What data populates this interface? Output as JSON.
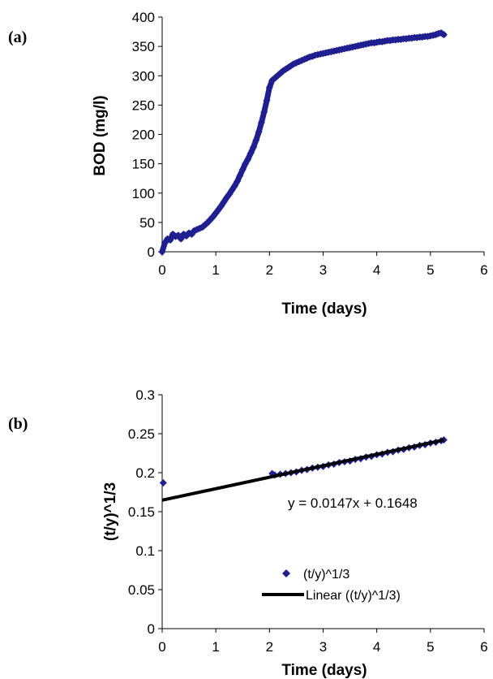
{
  "chart_data": [
    {
      "type": "scatter",
      "panel_label": "(a)",
      "title": "",
      "xlabel": "Time (days)",
      "ylabel": "BOD (mg/l)",
      "xlim": [
        0,
        6
      ],
      "ylim": [
        0,
        400
      ],
      "xticks": [
        "0",
        "1",
        "2",
        "3",
        "4",
        "5",
        "6"
      ],
      "yticks": [
        "0",
        "50",
        "100",
        "150",
        "200",
        "250",
        "300",
        "350",
        "400"
      ],
      "grid": false,
      "marker_color": "#1f1f8f",
      "series": [
        {
          "x": [
            0,
            0.05,
            0.1,
            0.15,
            0.2,
            0.25,
            0.3,
            0.35,
            0.4,
            0.45,
            0.5,
            0.55,
            0.6,
            0.65,
            0.7,
            0.75,
            0.8,
            0.85,
            0.9,
            0.95,
            1.0,
            1.05,
            1.1,
            1.15,
            1.2,
            1.25,
            1.3,
            1.35,
            1.4,
            1.45,
            1.5,
            1.55,
            1.6,
            1.65,
            1.7,
            1.75,
            1.8,
            1.85,
            1.9,
            1.95,
            2.0,
            2.05,
            2.1,
            2.15,
            2.2,
            2.25,
            2.3,
            2.35,
            2.4,
            2.45,
            2.5,
            2.55,
            2.6,
            2.65,
            2.7,
            2.75,
            2.8,
            2.85,
            2.9,
            2.95,
            3.0,
            3.05,
            3.1,
            3.15,
            3.2,
            3.25,
            3.3,
            3.35,
            3.4,
            3.45,
            3.5,
            3.55,
            3.6,
            3.65,
            3.7,
            3.75,
            3.8,
            3.85,
            3.9,
            3.95,
            4.0,
            4.05,
            4.1,
            4.15,
            4.2,
            4.25,
            4.3,
            4.35,
            4.4,
            4.45,
            4.5,
            4.55,
            4.6,
            4.65,
            4.7,
            4.75,
            4.8,
            4.85,
            4.9,
            4.95,
            5.0,
            5.05,
            5.1,
            5.15,
            5.2,
            5.25
          ],
          "y": [
            0,
            15,
            22,
            20,
            30,
            26,
            28,
            22,
            30,
            27,
            32,
            30,
            36,
            38,
            40,
            42,
            46,
            50,
            55,
            60,
            66,
            72,
            78,
            85,
            92,
            98,
            105,
            112,
            120,
            130,
            140,
            150,
            158,
            168,
            178,
            190,
            204,
            220,
            238,
            258,
            280,
            292,
            296,
            300,
            304,
            308,
            311,
            314,
            317,
            320,
            322,
            324,
            326,
            328,
            330,
            332,
            333,
            335,
            336,
            337,
            338,
            339,
            340,
            341,
            342,
            343,
            344,
            345,
            346,
            347,
            348,
            349,
            350,
            351,
            352,
            353,
            354,
            355,
            356,
            356,
            357,
            358,
            358,
            359,
            360,
            360,
            361,
            361,
            362,
            362,
            363,
            363,
            364,
            364,
            365,
            365,
            366,
            366,
            367,
            367,
            368,
            369,
            370,
            372,
            373,
            370
          ]
        }
      ]
    },
    {
      "type": "scatter",
      "panel_label": "(b)",
      "title": "",
      "xlabel": "Time (days)",
      "ylabel": "(t/y)^1/3",
      "xlim": [
        0,
        6
      ],
      "ylim": [
        0,
        0.3
      ],
      "xticks": [
        "0",
        "1",
        "2",
        "3",
        "4",
        "5",
        "6"
      ],
      "yticks": [
        "0",
        "0.05",
        "0.1",
        "0.15",
        "0.2",
        "0.25",
        "0.3"
      ],
      "grid": false,
      "annotation": "y = 0.0147x + 0.1648",
      "legend_position": "bottom-center",
      "marker_color": "#1f1f8f",
      "line_color": "#000000",
      "series": [
        {
          "name": "(t/y)^1/3",
          "x": [
            0.02,
            2.05,
            2.1,
            2.2,
            2.3,
            2.4,
            2.5,
            2.6,
            2.7,
            2.8,
            2.9,
            3.0,
            3.1,
            3.2,
            3.3,
            3.4,
            3.5,
            3.6,
            3.7,
            3.8,
            3.9,
            4.0,
            4.1,
            4.2,
            4.3,
            4.4,
            4.5,
            4.6,
            4.7,
            4.8,
            4.9,
            5.0,
            5.1,
            5.2,
            5.25
          ],
          "y": [
            0.187,
            0.199,
            0.197,
            0.198,
            0.199,
            0.2,
            0.201,
            0.203,
            0.204,
            0.206,
            0.207,
            0.208,
            0.21,
            0.211,
            0.213,
            0.214,
            0.215,
            0.217,
            0.218,
            0.22,
            0.221,
            0.223,
            0.224,
            0.226,
            0.227,
            0.229,
            0.23,
            0.232,
            0.233,
            0.235,
            0.236,
            0.238,
            0.239,
            0.241,
            0.242
          ]
        },
        {
          "name": "Linear ((t/y)^1/3)",
          "fit": "linear",
          "slope": 0.0147,
          "intercept": 0.1648,
          "x_range": [
            0,
            5.25
          ]
        }
      ]
    }
  ]
}
